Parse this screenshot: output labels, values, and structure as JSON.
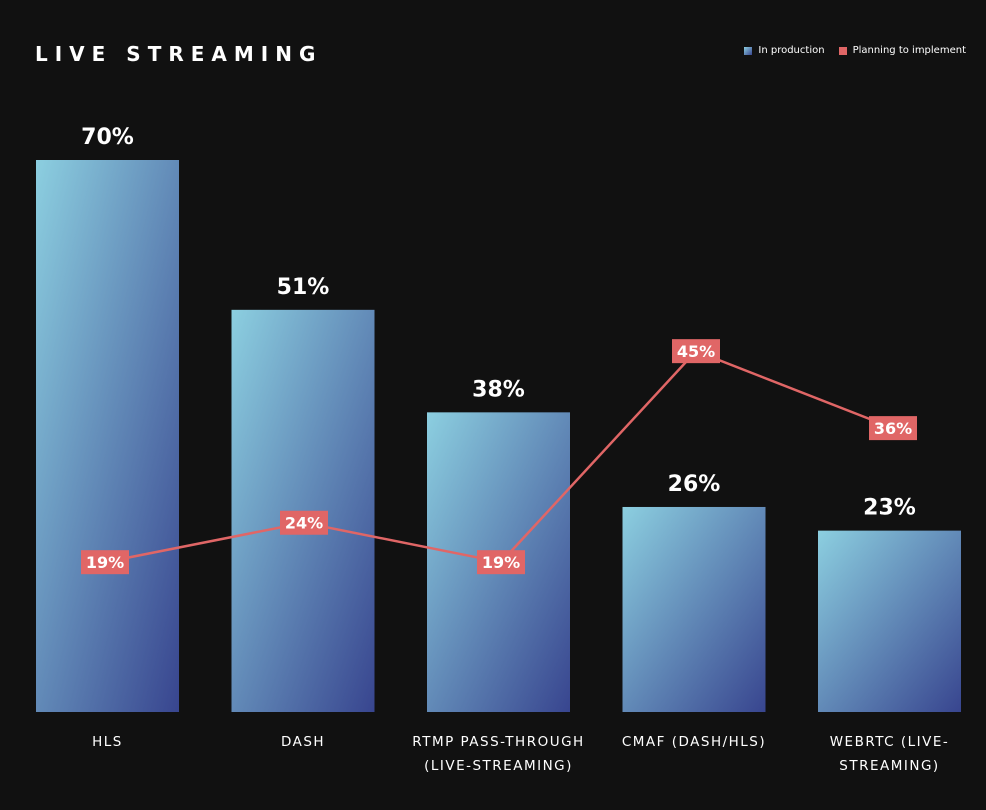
{
  "chart_data": {
    "type": "bar",
    "title": "LIVE STREAMING",
    "categories": [
      "HLS",
      "DASH",
      "RTMP PASS-THROUGH (LIVE-STREAMING)",
      "CMAF (DASH/HLS)",
      "WEBRTC (LIVE-STREAMING)"
    ],
    "category_lines": [
      [
        "HLS"
      ],
      [
        "DASH"
      ],
      [
        "RTMP PASS-THROUGH",
        "(LIVE-STREAMING)"
      ],
      [
        "CMAF (DASH/HLS)"
      ],
      [
        "WEBRTC (LIVE-",
        "STREAMING)"
      ]
    ],
    "series": [
      {
        "name": "In production",
        "type": "bar",
        "values": [
          70,
          51,
          38,
          26,
          23
        ],
        "labels": [
          "70%",
          "51%",
          "38%",
          "26%",
          "23%"
        ],
        "color_top": "#8ccfe0",
        "color_bottom": "#38458f"
      },
      {
        "name": "Planning to implement",
        "type": "line",
        "values": [
          19,
          24,
          19,
          45,
          36
        ],
        "labels": [
          "19%",
          "24%",
          "19%",
          "45%",
          "36%"
        ],
        "color": "#e06666"
      }
    ],
    "ylim": [
      0,
      70
    ],
    "grid": false,
    "legend": "top-right"
  }
}
